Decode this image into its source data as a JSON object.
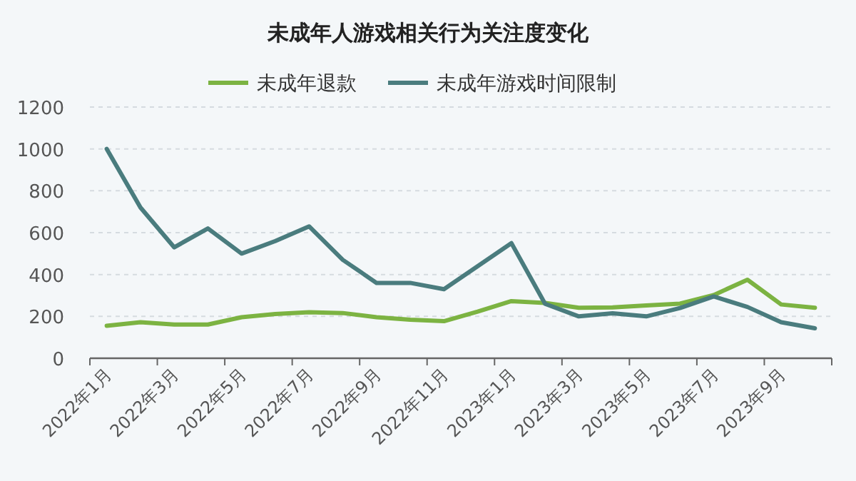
{
  "chart_data": {
    "type": "line",
    "title": "未成年人游戏相关行为关注度变化",
    "categories": [
      "2022年1月",
      null,
      "2022年3月",
      null,
      "2022年5月",
      null,
      "2022年7月",
      null,
      "2022年9月",
      null,
      "2022年11月",
      null,
      "2023年1月",
      null,
      "2023年3月",
      null,
      "2023年5月",
      null,
      "2023年7月",
      null,
      "2023年9月",
      null
    ],
    "series": [
      {
        "name": "未成年退款",
        "color": "#7cb342",
        "values": [
          155,
          172,
          161,
          161,
          196,
          211,
          220,
          216,
          196,
          184,
          177,
          223,
          273,
          264,
          241,
          243,
          252,
          261,
          302,
          375,
          257,
          241
        ]
      },
      {
        "name": "未成年游戏时间限制",
        "color": "#4a7c7e",
        "values": [
          1000,
          720,
          530,
          620,
          500,
          560,
          630,
          470,
          360,
          360,
          330,
          440,
          550,
          260,
          200,
          215,
          200,
          240,
          295,
          245,
          172,
          143
        ]
      }
    ],
    "ylim": [
      0,
      1200
    ],
    "yticks": [
      0,
      200,
      400,
      600,
      800,
      1000,
      1200
    ],
    "grid": "y",
    "legend": "top"
  }
}
